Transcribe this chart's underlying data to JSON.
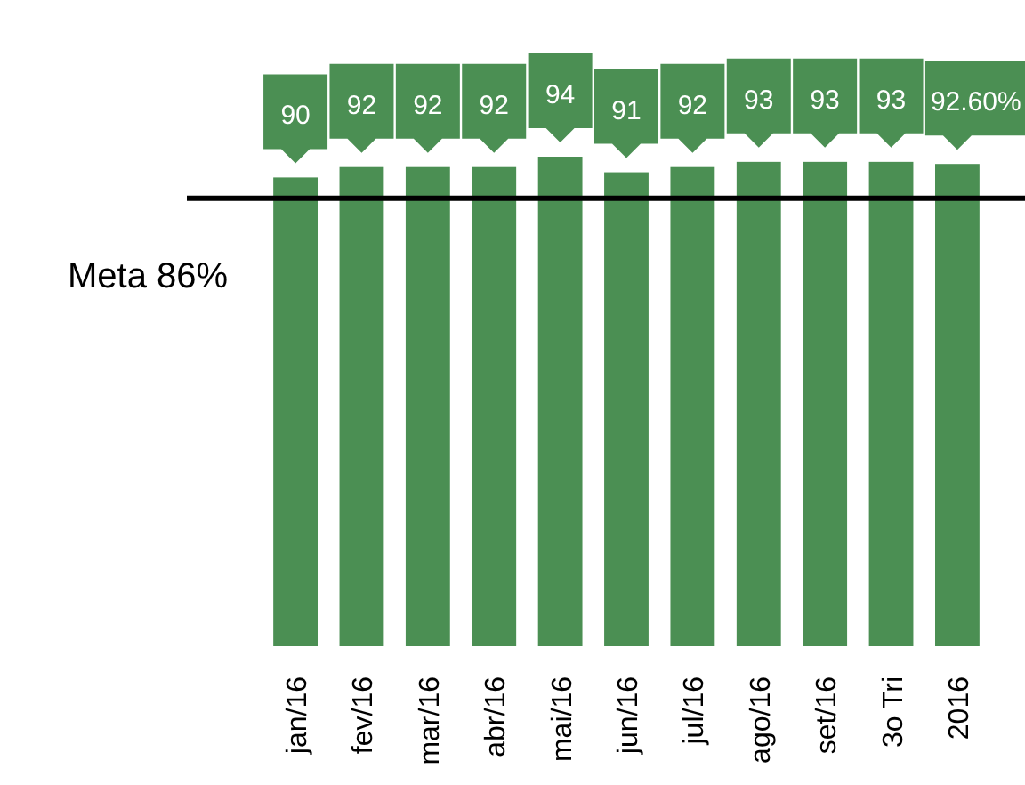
{
  "chart_data": {
    "type": "bar",
    "categories": [
      "jan/16",
      "fev/16",
      "mar/16",
      "abr/16",
      "mai/16",
      "jun/16",
      "jul/16",
      "ago/16",
      "set/16",
      "3o Tri",
      "2016"
    ],
    "values": [
      90,
      92,
      92,
      92,
      94,
      91,
      92,
      93,
      93,
      93,
      92.6
    ],
    "value_labels": [
      "90",
      "92",
      "92",
      "92",
      "94",
      "91",
      "92",
      "93",
      "93",
      "93",
      "92.60%"
    ],
    "color": "#4b8f53",
    "ref_lines": [
      {
        "axis": "y",
        "value": 86,
        "label": "Meta 86%",
        "color": "#000000"
      }
    ]
  }
}
